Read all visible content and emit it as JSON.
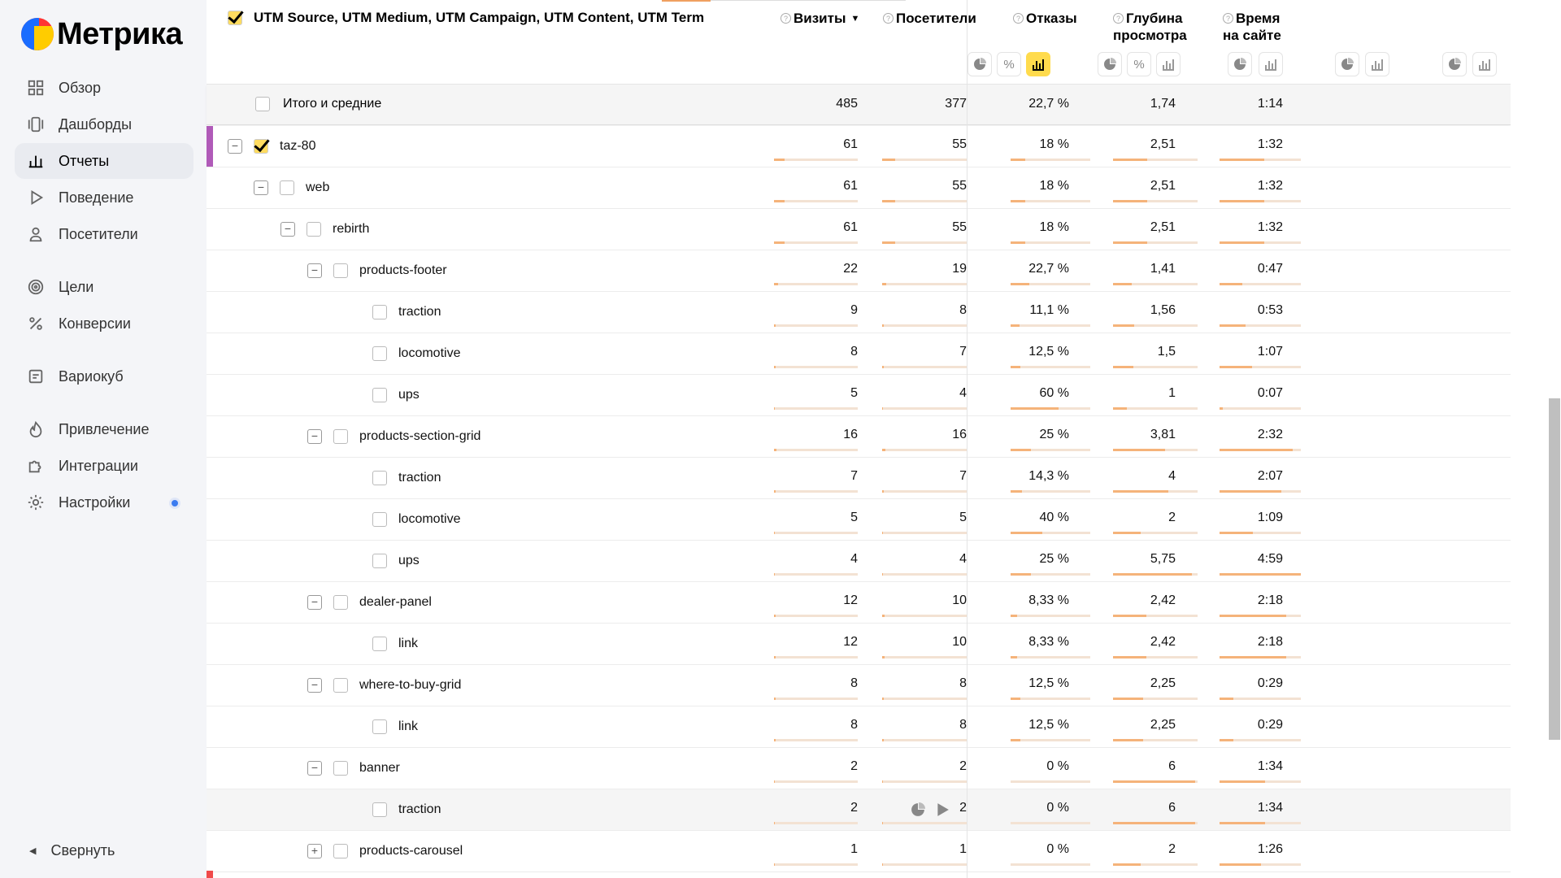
{
  "app": {
    "logo_text": "Метрика"
  },
  "sidebar": {
    "items": [
      {
        "label": "Обзор",
        "icon": "grid-icon",
        "active": false
      },
      {
        "label": "Дашборды",
        "icon": "dashboards-icon",
        "active": false
      },
      {
        "label": "Отчеты",
        "icon": "bar-chart-icon",
        "active": true
      },
      {
        "label": "Поведение",
        "icon": "play-icon",
        "active": false
      },
      {
        "label": "Посетители",
        "icon": "user-icon",
        "active": false
      },
      {
        "label": "Цели",
        "icon": "target-icon",
        "active": false
      },
      {
        "label": "Конверсии",
        "icon": "percent-icon",
        "active": false
      },
      {
        "label": "Вариокуб",
        "icon": "variocube-icon",
        "active": false
      },
      {
        "label": "Привлечение",
        "icon": "fire-icon",
        "active": false
      },
      {
        "label": "Интеграции",
        "icon": "puzzle-icon",
        "active": false
      },
      {
        "label": "Настройки",
        "icon": "gear-icon",
        "active": false
      }
    ],
    "collapse_label": "Свернуть"
  },
  "table": {
    "dimension_title": "UTM Source, UTM Medium, UTM Campaign, UTM Content, UTM Term",
    "metrics": [
      {
        "line1": "Визиты",
        "line2": "",
        "sorted": true
      },
      {
        "line1": "Посетители",
        "line2": ""
      },
      {
        "line1": "Отказы",
        "line2": ""
      },
      {
        "line1": "Глубина",
        "line2": "просмотра"
      },
      {
        "line1": "Время",
        "line2": "на сайте"
      }
    ],
    "totals": {
      "label": "Итого и средние",
      "values": [
        "485",
        "377",
        "22,7 %",
        "1,74",
        "1:14"
      ]
    },
    "rows": [
      {
        "label": "taz-80",
        "level": 0,
        "toggle": "minus",
        "checked": true,
        "values": [
          "61",
          "55",
          "18 %",
          "2,51",
          "1:32"
        ],
        "bars": [
          0.13,
          0.15,
          0.18,
          0.4,
          0.55
        ]
      },
      {
        "label": "web",
        "level": 1,
        "toggle": "minus",
        "checked": false,
        "values": [
          "61",
          "55",
          "18 %",
          "2,51",
          "1:32"
        ],
        "bars": [
          0.13,
          0.15,
          0.18,
          0.4,
          0.55
        ]
      },
      {
        "label": "rebirth",
        "level": 2,
        "toggle": "minus",
        "checked": false,
        "values": [
          "61",
          "55",
          "18 %",
          "2,51",
          "1:32"
        ],
        "bars": [
          0.13,
          0.15,
          0.18,
          0.4,
          0.55
        ]
      },
      {
        "label": "products-footer",
        "level": 3,
        "toggle": "minus",
        "checked": false,
        "values": [
          "22",
          "19",
          "22,7 %",
          "1,41",
          "0:47"
        ],
        "bars": [
          0.05,
          0.05,
          0.23,
          0.22,
          0.28
        ]
      },
      {
        "label": "traction",
        "level": 4,
        "toggle": "none",
        "checked": false,
        "values": [
          "9",
          "8",
          "11,1 %",
          "1,56",
          "0:53"
        ],
        "bars": [
          0.02,
          0.02,
          0.11,
          0.25,
          0.32
        ]
      },
      {
        "label": "locomotive",
        "level": 4,
        "toggle": "none",
        "checked": false,
        "values": [
          "8",
          "7",
          "12,5 %",
          "1,5",
          "1:07"
        ],
        "bars": [
          0.02,
          0.02,
          0.12,
          0.24,
          0.4
        ]
      },
      {
        "label": "ups",
        "level": 4,
        "toggle": "none",
        "checked": false,
        "values": [
          "5",
          "4",
          "60 %",
          "1",
          "0:07"
        ],
        "bars": [
          0.01,
          0.01,
          0.6,
          0.16,
          0.04
        ]
      },
      {
        "label": "products-section-grid",
        "level": 3,
        "toggle": "minus",
        "checked": false,
        "values": [
          "16",
          "16",
          "25 %",
          "3,81",
          "2:32"
        ],
        "bars": [
          0.03,
          0.04,
          0.25,
          0.62,
          0.9
        ]
      },
      {
        "label": "traction",
        "level": 4,
        "toggle": "none",
        "checked": false,
        "values": [
          "7",
          "7",
          "14,3 %",
          "4",
          "2:07"
        ],
        "bars": [
          0.02,
          0.02,
          0.14,
          0.65,
          0.76
        ]
      },
      {
        "label": "locomotive",
        "level": 4,
        "toggle": "none",
        "checked": false,
        "values": [
          "5",
          "5",
          "40 %",
          "2",
          "1:09"
        ],
        "bars": [
          0.01,
          0.01,
          0.4,
          0.33,
          0.41
        ]
      },
      {
        "label": "ups",
        "level": 4,
        "toggle": "none",
        "checked": false,
        "values": [
          "4",
          "4",
          "25 %",
          "5,75",
          "4:59"
        ],
        "bars": [
          0.01,
          0.01,
          0.25,
          0.93,
          1.0
        ]
      },
      {
        "label": "dealer-panel",
        "level": 3,
        "toggle": "minus",
        "checked": false,
        "values": [
          "12",
          "10",
          "8,33 %",
          "2,42",
          "2:18"
        ],
        "bars": [
          0.02,
          0.03,
          0.08,
          0.39,
          0.82
        ]
      },
      {
        "label": "link",
        "level": 4,
        "toggle": "none",
        "checked": false,
        "values": [
          "12",
          "10",
          "8,33 %",
          "2,42",
          "2:18"
        ],
        "bars": [
          0.02,
          0.03,
          0.08,
          0.39,
          0.82
        ]
      },
      {
        "label": "where-to-buy-grid",
        "level": 3,
        "toggle": "minus",
        "checked": false,
        "values": [
          "8",
          "8",
          "12,5 %",
          "2,25",
          "0:29"
        ],
        "bars": [
          0.02,
          0.02,
          0.12,
          0.36,
          0.17
        ]
      },
      {
        "label": "link",
        "level": 4,
        "toggle": "none",
        "checked": false,
        "values": [
          "8",
          "8",
          "12,5 %",
          "2,25",
          "0:29"
        ],
        "bars": [
          0.02,
          0.02,
          0.12,
          0.36,
          0.17
        ]
      },
      {
        "label": "banner",
        "level": 3,
        "toggle": "minus",
        "checked": false,
        "values": [
          "2",
          "2",
          "0 %",
          "6",
          "1:34"
        ],
        "bars": [
          0.005,
          0.005,
          0.0,
          0.97,
          0.56
        ]
      },
      {
        "label": "traction",
        "level": 4,
        "toggle": "none",
        "checked": false,
        "highlight": true,
        "values": [
          "2",
          "2",
          "0 %",
          "6",
          "1:34"
        ],
        "bars": [
          0.005,
          0.005,
          0.0,
          0.97,
          0.56
        ]
      },
      {
        "label": "products-carousel",
        "level": 3,
        "toggle": "plus",
        "checked": false,
        "values": [
          "1",
          "1",
          "0 %",
          "2",
          "1:26"
        ],
        "bars": [
          0.003,
          0.003,
          0.0,
          0.33,
          0.51
        ]
      }
    ]
  },
  "colors": {
    "accent": "#ffdb4d",
    "bar_fill": "#f5b37a",
    "bar_track": "#f3e2d3",
    "row_marker": "#b05ab8",
    "next_row_marker": "#f04a4a"
  }
}
